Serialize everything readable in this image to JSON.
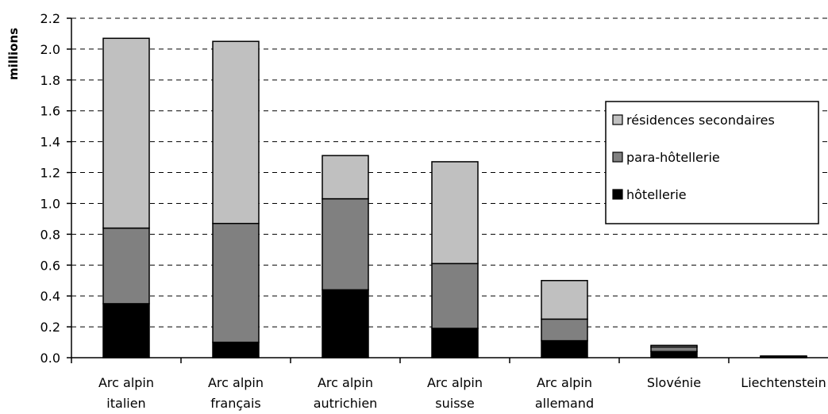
{
  "chart_data": {
    "type": "bar",
    "stacked": true,
    "ylabel": "millions",
    "xlabel": "",
    "ylim": [
      0,
      2.2
    ],
    "ytick_step": 0.2,
    "yticks": [
      "0.0",
      "0.2",
      "0.4",
      "0.6",
      "0.8",
      "1.0",
      "1.2",
      "1.4",
      "1.6",
      "1.8",
      "2.0",
      "2.2"
    ],
    "grid": "horizontal dashed",
    "legend_position": "right",
    "categories": [
      [
        "Arc alpin",
        "italien"
      ],
      [
        "Arc alpin",
        "français"
      ],
      [
        "Arc alpin",
        "autrichien"
      ],
      [
        "Arc alpin",
        "suisse"
      ],
      [
        "Arc alpin",
        "allemand"
      ],
      [
        "Slovénie"
      ],
      [
        "Liechtenstein"
      ]
    ],
    "series": [
      {
        "name": "hôtellerie",
        "color": "#000000",
        "values": [
          0.35,
          0.1,
          0.44,
          0.19,
          0.11,
          0.04,
          0.005
        ]
      },
      {
        "name": "para-hôtellerie",
        "color": "#808080",
        "values": [
          0.49,
          0.77,
          0.59,
          0.42,
          0.14,
          0.03,
          0.003
        ]
      },
      {
        "name": "résidences secondaires",
        "color": "#c0c0c0",
        "values": [
          1.23,
          1.18,
          0.28,
          0.66,
          0.25,
          0.01,
          0.002
        ]
      }
    ],
    "legend_order": [
      "résidences secondaires",
      "para-hôtellerie",
      "hôtellerie"
    ]
  }
}
